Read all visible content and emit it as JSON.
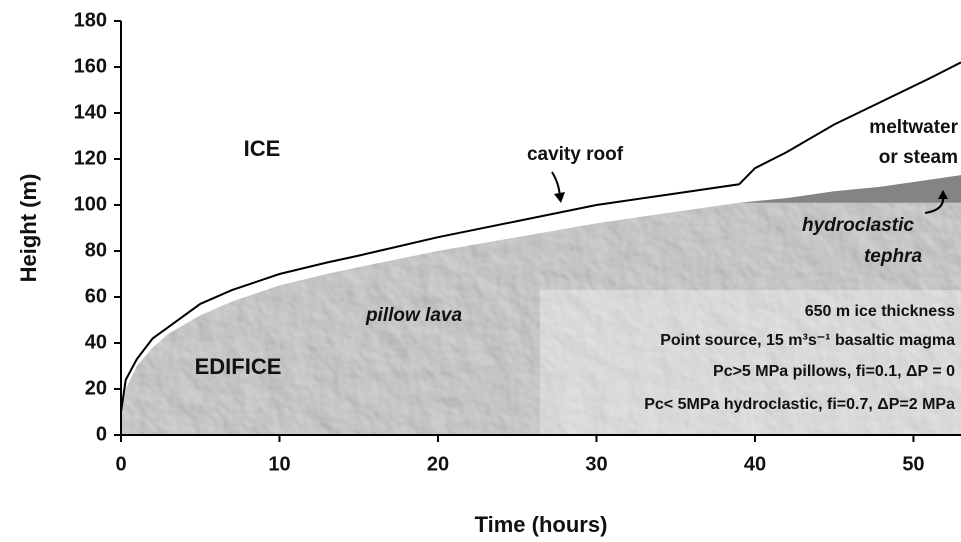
{
  "chart_data": {
    "type": "area",
    "xlabel": "Time (hours)",
    "ylabel": "Height (m)",
    "xlim": [
      0,
      53
    ],
    "ylim": [
      0,
      180
    ],
    "xticks": [
      0,
      10,
      20,
      30,
      40,
      50
    ],
    "yticks": [
      0,
      20,
      40,
      60,
      80,
      100,
      120,
      140,
      160,
      180
    ],
    "series": [
      {
        "color": "#c4c4c4",
        "x": [
          0,
          0.3,
          1,
          2,
          3,
          5,
          7,
          10,
          13,
          15,
          20,
          25,
          30,
          35,
          39,
          42,
          45,
          48,
          51,
          53
        ],
        "values": [
          8,
          20,
          30,
          38,
          44,
          52,
          58,
          65,
          70,
          73,
          80,
          86,
          92,
          97,
          101,
          101,
          101,
          101,
          101,
          101
        ]
      },
      {
        "color": "#000000",
        "x": [
          0,
          0.3,
          1,
          2,
          3,
          5,
          7,
          10,
          13,
          15,
          20,
          25,
          30,
          35,
          39,
          40,
          42,
          45,
          48,
          51,
          53
        ],
        "values": [
          10,
          24,
          33,
          42,
          47,
          57,
          63,
          70,
          75,
          78,
          86,
          93,
          100,
          105,
          109,
          116,
          123,
          135,
          145,
          155,
          162
        ]
      },
      {
        "color": "#6e6e6e",
        "x": [
          39,
          42,
          45,
          48,
          51,
          53
        ],
        "values": [
          101,
          103,
          106,
          108,
          111,
          113
        ]
      }
    ],
    "annotations": [
      "ICE",
      "cavity roof",
      "meltwater",
      "or steam",
      "hydroclastic",
      "tephra",
      "pillow lava",
      "EDIFICE",
      "650 m ice thickness",
      "Point source, 15 m³s⁻¹ basaltic magma",
      "Pc>5 MPa pillows, fi=0.1, ΔP = 0",
      "Pc< 5MPa hydroclastic, fi=0.7, ΔP=2 MPa"
    ]
  }
}
